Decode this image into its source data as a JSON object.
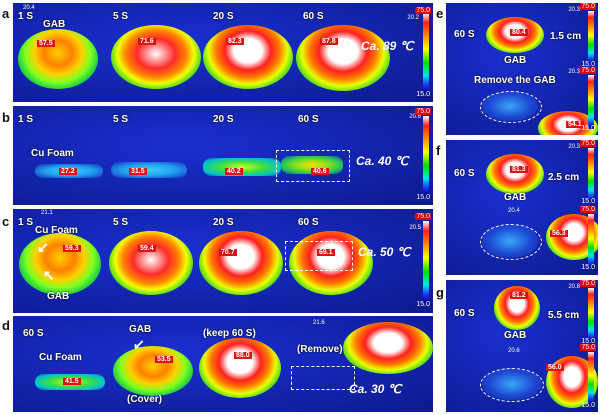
{
  "labels": {
    "a": "a",
    "b": "b",
    "c": "c",
    "d": "d",
    "e": "e",
    "f": "f",
    "g": "g"
  },
  "colorbar": {
    "max": "75.0",
    "min": "15.0"
  },
  "panel_a": {
    "times": [
      "1 S",
      "5 S",
      "20 S",
      "60 S"
    ],
    "object": "GAB",
    "temps": [
      "57.5",
      "71.6",
      "82.3",
      "87.8"
    ],
    "ca": "Ca. 89 ℃",
    "small": "20.4",
    "small2": "20.2"
  },
  "panel_b": {
    "times": [
      "1 S",
      "5 S",
      "20 S",
      "60 S"
    ],
    "object": "Cu Foam",
    "temps": [
      "27.2",
      "31.5",
      "40.2",
      "40.6"
    ],
    "ca": "Ca. 40 ℃",
    "small": "20.6"
  },
  "panel_c": {
    "times": [
      "1 S",
      "5 S",
      "20 S",
      "60 S"
    ],
    "object1": "Cu Foam",
    "object2": "GAB",
    "temps": [
      "59.3",
      "59.4",
      "70.7",
      "69.1"
    ],
    "ca": "Ca. 50 ℃",
    "small": "21.1",
    "small2": "20.5"
  },
  "panel_d": {
    "time": "60 S",
    "obj1": "Cu Foam",
    "obj2": "GAB",
    "cover": "(Cover)",
    "keep": "(keep 60 S)",
    "remove": "(Remove)",
    "temps": [
      "41.5",
      "53.5",
      "88.0"
    ],
    "ca": "Ca. 30 ℃",
    "small": "21.6"
  },
  "panel_e": {
    "time": "60 S",
    "dist": "1.5 cm",
    "obj": "GAB",
    "temp": "80.4",
    "remove": "Remove the GAB",
    "small": "20.3",
    "small2": "20.3",
    "temp2": "54.1"
  },
  "panel_f": {
    "time": "60 S",
    "dist": "2.5 cm",
    "obj": "GAB",
    "temp": "81.3",
    "small": "20.3",
    "small2": "20.4",
    "temp2": "56.3"
  },
  "panel_g": {
    "time": "60 S",
    "dist": "5.5 cm",
    "obj": "GAB",
    "temp": "81.2",
    "small": "20.8",
    "small2": "20.6",
    "temp2": "56.0"
  }
}
